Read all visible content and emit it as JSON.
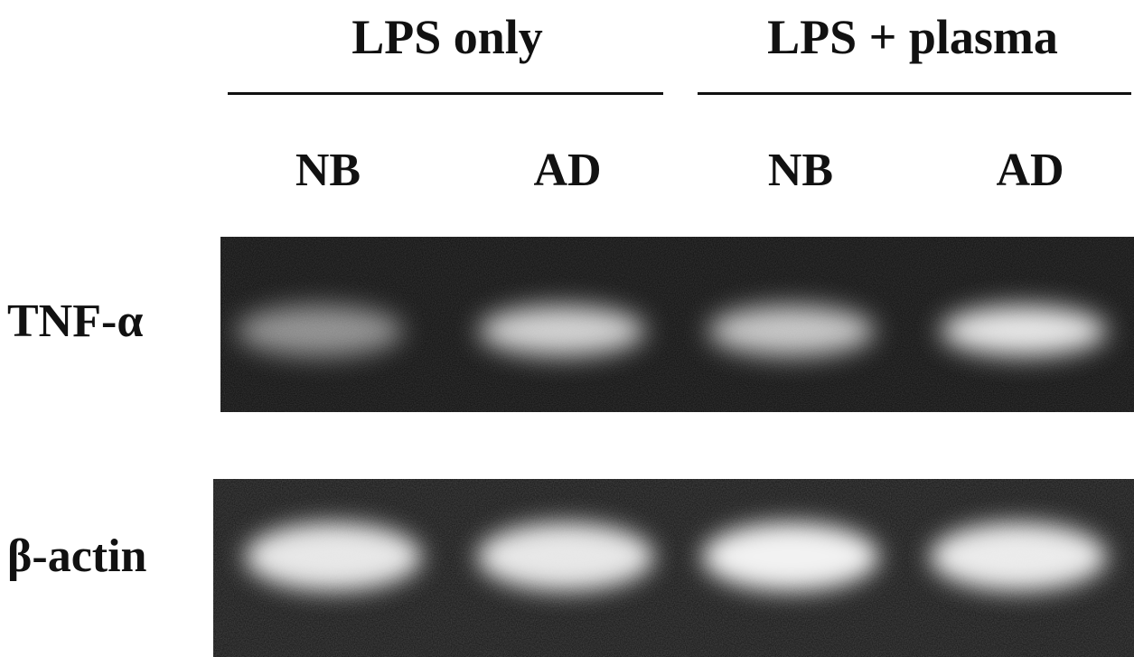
{
  "groups": [
    {
      "title": "LPS only"
    },
    {
      "title": "LPS + plasma"
    }
  ],
  "lanes": [
    {
      "label": "NB"
    },
    {
      "label": "AD"
    },
    {
      "label": "NB"
    },
    {
      "label": "AD"
    }
  ],
  "rows": [
    {
      "label": "TNF-α",
      "band_intensities": [
        0.55,
        0.85,
        0.8,
        0.95
      ]
    },
    {
      "label": "β-actin",
      "band_intensities": [
        0.95,
        0.95,
        1.0,
        0.97
      ]
    }
  ],
  "colors": {
    "gel_background": "#0d0d0d",
    "band": "#f2f2f2",
    "text": "#111111"
  }
}
